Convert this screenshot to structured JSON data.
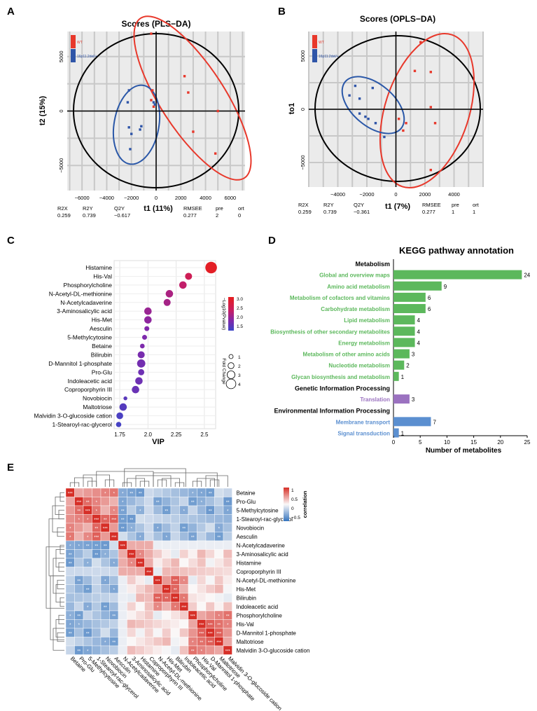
{
  "panel_labels": {
    "A": "A",
    "B": "B",
    "C": "C",
    "D": "D",
    "E": "E"
  },
  "chart_data": [
    {
      "id": "A",
      "type": "scatter",
      "title": "Scores (PLS−DA)",
      "xlabel": "t1 (11%)",
      "ylabel": "t2 (15%)",
      "xlim": [
        -7200,
        7200
      ],
      "ylim": [
        -7300,
        7300
      ],
      "xticks": [
        -6000,
        -4000,
        -2000,
        0,
        2000,
        4000,
        6000
      ],
      "xtick_labels": [
        "−6000",
        "−4000",
        "−2000",
        "0",
        "2000",
        "4000",
        "6000"
      ],
      "yticks": [
        5000,
        0,
        -5000
      ],
      "ytick_labels": [
        "5000",
        "0",
        "−5000"
      ],
      "legend": [
        {
          "name": "WT",
          "color": "#e8382b"
        },
        {
          "name": "16p11.2del/+",
          "color": "#2f55a8"
        }
      ],
      "series": [
        {
          "name": "WT",
          "color": "#e8382b",
          "points": [
            [
              -400,
              7100
            ],
            [
              2300,
              3200
            ],
            [
              -300,
              1900
            ],
            [
              -400,
              1000
            ],
            [
              -200,
              400
            ],
            [
              2600,
              1700
            ],
            [
              5000,
              0
            ],
            [
              3000,
              -1900
            ],
            [
              4800,
              -3900
            ]
          ]
        },
        {
          "name": "16p11.2del/+",
          "color": "#2f55a8",
          "points": [
            [
              -2200,
              1900
            ],
            [
              -2300,
              800
            ],
            [
              -200,
              800
            ],
            [
              -100,
              600
            ],
            [
              -1300,
              -1700
            ],
            [
              -2200,
              -1500
            ],
            [
              -1200,
              -1400
            ],
            [
              -2000,
              -2100
            ],
            [
              -2100,
              -3500
            ]
          ]
        }
      ],
      "stats": {
        "headers": [
          "R2X",
          "R2Y",
          "Q2Y",
          "RMSEE",
          "pre",
          "ort"
        ],
        "values": [
          "0.259",
          "0.739",
          "−0.617",
          "0.277",
          "2",
          "0"
        ]
      }
    },
    {
      "id": "B",
      "type": "scatter",
      "title": "Scores (OPLS−DA)",
      "xlabel": "t1 (7%)",
      "ylabel": "to1",
      "xlim": [
        -6000,
        6000
      ],
      "ylim": [
        -7300,
        7300
      ],
      "xticks": [
        -4000,
        -2000,
        0,
        2000,
        4000
      ],
      "xtick_labels": [
        "−4000",
        "−2000",
        "0",
        "2000",
        "4000"
      ],
      "yticks": [
        5000,
        0,
        -5000
      ],
      "ytick_labels": [
        "5000",
        "0",
        "−5000"
      ],
      "legend": [
        {
          "name": "WT",
          "color": "#e8382b"
        },
        {
          "name": "16p11.2del/+",
          "color": "#2f55a8"
        }
      ],
      "series": [
        {
          "name": "WT",
          "color": "#e8382b",
          "points": [
            [
              1700,
              6300
            ],
            [
              1300,
              3600
            ],
            [
              2400,
              3500
            ],
            [
              2400,
              200
            ],
            [
              200,
              -900
            ],
            [
              700,
              -1300
            ],
            [
              500,
              -2000
            ],
            [
              2700,
              -1300
            ],
            [
              2400,
              -5700
            ]
          ]
        },
        {
          "name": "16p11.2del/+",
          "color": "#2f55a8",
          "points": [
            [
              -2800,
              2200
            ],
            [
              -1600,
              2000
            ],
            [
              -2500,
              1000
            ],
            [
              -3200,
              1300
            ],
            [
              -1900,
              -900
            ],
            [
              -1400,
              -1300
            ],
            [
              -2100,
              -700
            ],
            [
              -800,
              -2600
            ],
            [
              -2500,
              -400
            ]
          ]
        }
      ],
      "stats": {
        "headers": [
          "R2X",
          "R2Y",
          "Q2Y",
          "RMSEE",
          "pre",
          "ort"
        ],
        "values": [
          "0.259",
          "0.739",
          "−0.361",
          "0.277",
          "1",
          "1"
        ]
      }
    },
    {
      "id": "C",
      "type": "scatter",
      "xlabel": "VIP",
      "xlim": [
        1.7,
        2.6
      ],
      "xticks": [
        1.75,
        2.0,
        2.25,
        2.5
      ],
      "xtick_labels": [
        "1.75",
        "2.0",
        "2.25",
        "2.5"
      ],
      "colorbar": {
        "title": "−Log10(Pvalue)",
        "ticks": [
          "3.0",
          "2.5",
          "2.0",
          "1.5"
        ],
        "min": 1.3,
        "max": 3.1
      },
      "size_legend": {
        "title": "Fold Change",
        "values": [
          "1",
          "2",
          "3",
          "4"
        ]
      },
      "points": [
        {
          "name": "Histamine",
          "vip": 2.56,
          "logp": 3.05,
          "fc": 4.2
        },
        {
          "name": "His-Val",
          "vip": 2.36,
          "logp": 2.7,
          "fc": 2.0
        },
        {
          "name": "Phosphorylcholine",
          "vip": 2.31,
          "logp": 2.55,
          "fc": 2.2
        },
        {
          "name": "N-Acetyl-DL-methionine",
          "vip": 2.19,
          "logp": 2.35,
          "fc": 2.2
        },
        {
          "name": "N-Acetylcadaverine",
          "vip": 2.17,
          "logp": 2.3,
          "fc": 2.0
        },
        {
          "name": "3-Aminosalicylic acid",
          "vip": 2.0,
          "logp": 2.2,
          "fc": 2.2
        },
        {
          "name": "His-Met",
          "vip": 2.0,
          "logp": 2.1,
          "fc": 2.2
        },
        {
          "name": "Aesculin",
          "vip": 1.99,
          "logp": 2.0,
          "fc": 1.0
        },
        {
          "name": "5-Methylcytosine",
          "vip": 1.97,
          "logp": 1.95,
          "fc": 1.0
        },
        {
          "name": "Betaine",
          "vip": 1.95,
          "logp": 1.95,
          "fc": 0.9
        },
        {
          "name": "Bilirubin",
          "vip": 1.94,
          "logp": 1.9,
          "fc": 2.0
        },
        {
          "name": "D-Mannitol 1-phosphate",
          "vip": 1.94,
          "logp": 1.85,
          "fc": 2.6
        },
        {
          "name": "Pro-Glu",
          "vip": 1.94,
          "logp": 1.8,
          "fc": 1.6
        },
        {
          "name": "Indoleacetic acid",
          "vip": 1.92,
          "logp": 1.8,
          "fc": 2.2
        },
        {
          "name": "Coproporphyrin III",
          "vip": 1.89,
          "logp": 1.75,
          "fc": 2.2
        },
        {
          "name": "Novobiocin",
          "vip": 1.8,
          "logp": 1.6,
          "fc": 0.5
        },
        {
          "name": "Maltotriose",
          "vip": 1.78,
          "logp": 1.55,
          "fc": 2.2
        },
        {
          "name": "Malvidin 3-O-glucoside cation",
          "vip": 1.75,
          "logp": 1.45,
          "fc": 1.9
        },
        {
          "name": "1-Stearoyl-rac-glycerol",
          "vip": 1.74,
          "logp": 1.4,
          "fc": 1.2
        }
      ]
    },
    {
      "id": "D",
      "type": "bar",
      "title": "KEGG pathway annotation",
      "xlabel": "Number of metabolites",
      "xlim": [
        0,
        25
      ],
      "xticks": [
        0,
        5,
        10,
        15,
        20,
        25
      ],
      "groups": [
        {
          "name": "Metabolism",
          "color": "#5cb85c",
          "items": [
            {
              "label": "Global and overview maps",
              "value": 24
            },
            {
              "label": "Amino acid metabolism",
              "value": 9
            },
            {
              "label": "Metabolism of cofactors and vitamins",
              "value": 6
            },
            {
              "label": "Carbohydrate metabolism",
              "value": 6
            },
            {
              "label": "Lipid metabolism",
              "value": 4
            },
            {
              "label": "Biosynthesis of other secondary metabolites",
              "value": 4
            },
            {
              "label": "Energy metabolism",
              "value": 4
            },
            {
              "label": "Metabolism of other amino acids",
              "value": 3
            },
            {
              "label": "Nucleotide metabolism",
              "value": 2
            },
            {
              "label": "Glycan biosynthesis and metabolism",
              "value": 1
            }
          ]
        },
        {
          "name": "Genetic Information Processing",
          "color": "#9b72c0",
          "items": [
            {
              "label": "Translation",
              "value": 3
            }
          ]
        },
        {
          "name": "Environmental Information Processing",
          "color": "#5b8fd0",
          "items": [
            {
              "label": "Membrane transport",
              "value": 7
            },
            {
              "label": "Signal transduction",
              "value": 1
            }
          ]
        }
      ]
    },
    {
      "id": "E",
      "type": "heatmap",
      "legend_title": "correlation",
      "legend_ticks": [
        "1",
        "0.5",
        "0",
        "−0.5"
      ],
      "labels": [
        "Betaine",
        "Pro-Glu",
        "5-Methylcytosine",
        "1-Stearoyl-rac-glycerol",
        "Novobiocin",
        "Aesculin",
        "N-Acetylcadaverine",
        "3-Aminosalicylic acid",
        "Histamine",
        "Coproporphyrin III",
        "N-Acetyl-DL-methionine",
        "His-Met",
        "Bilirubin",
        "Indoleacetic acid",
        "Phosphorylcholine",
        "His-Val",
        "D-Mannitol 1-phosphate",
        "Maltotriose",
        "Malvidin 3-O-glucoside cation"
      ]
    }
  ]
}
